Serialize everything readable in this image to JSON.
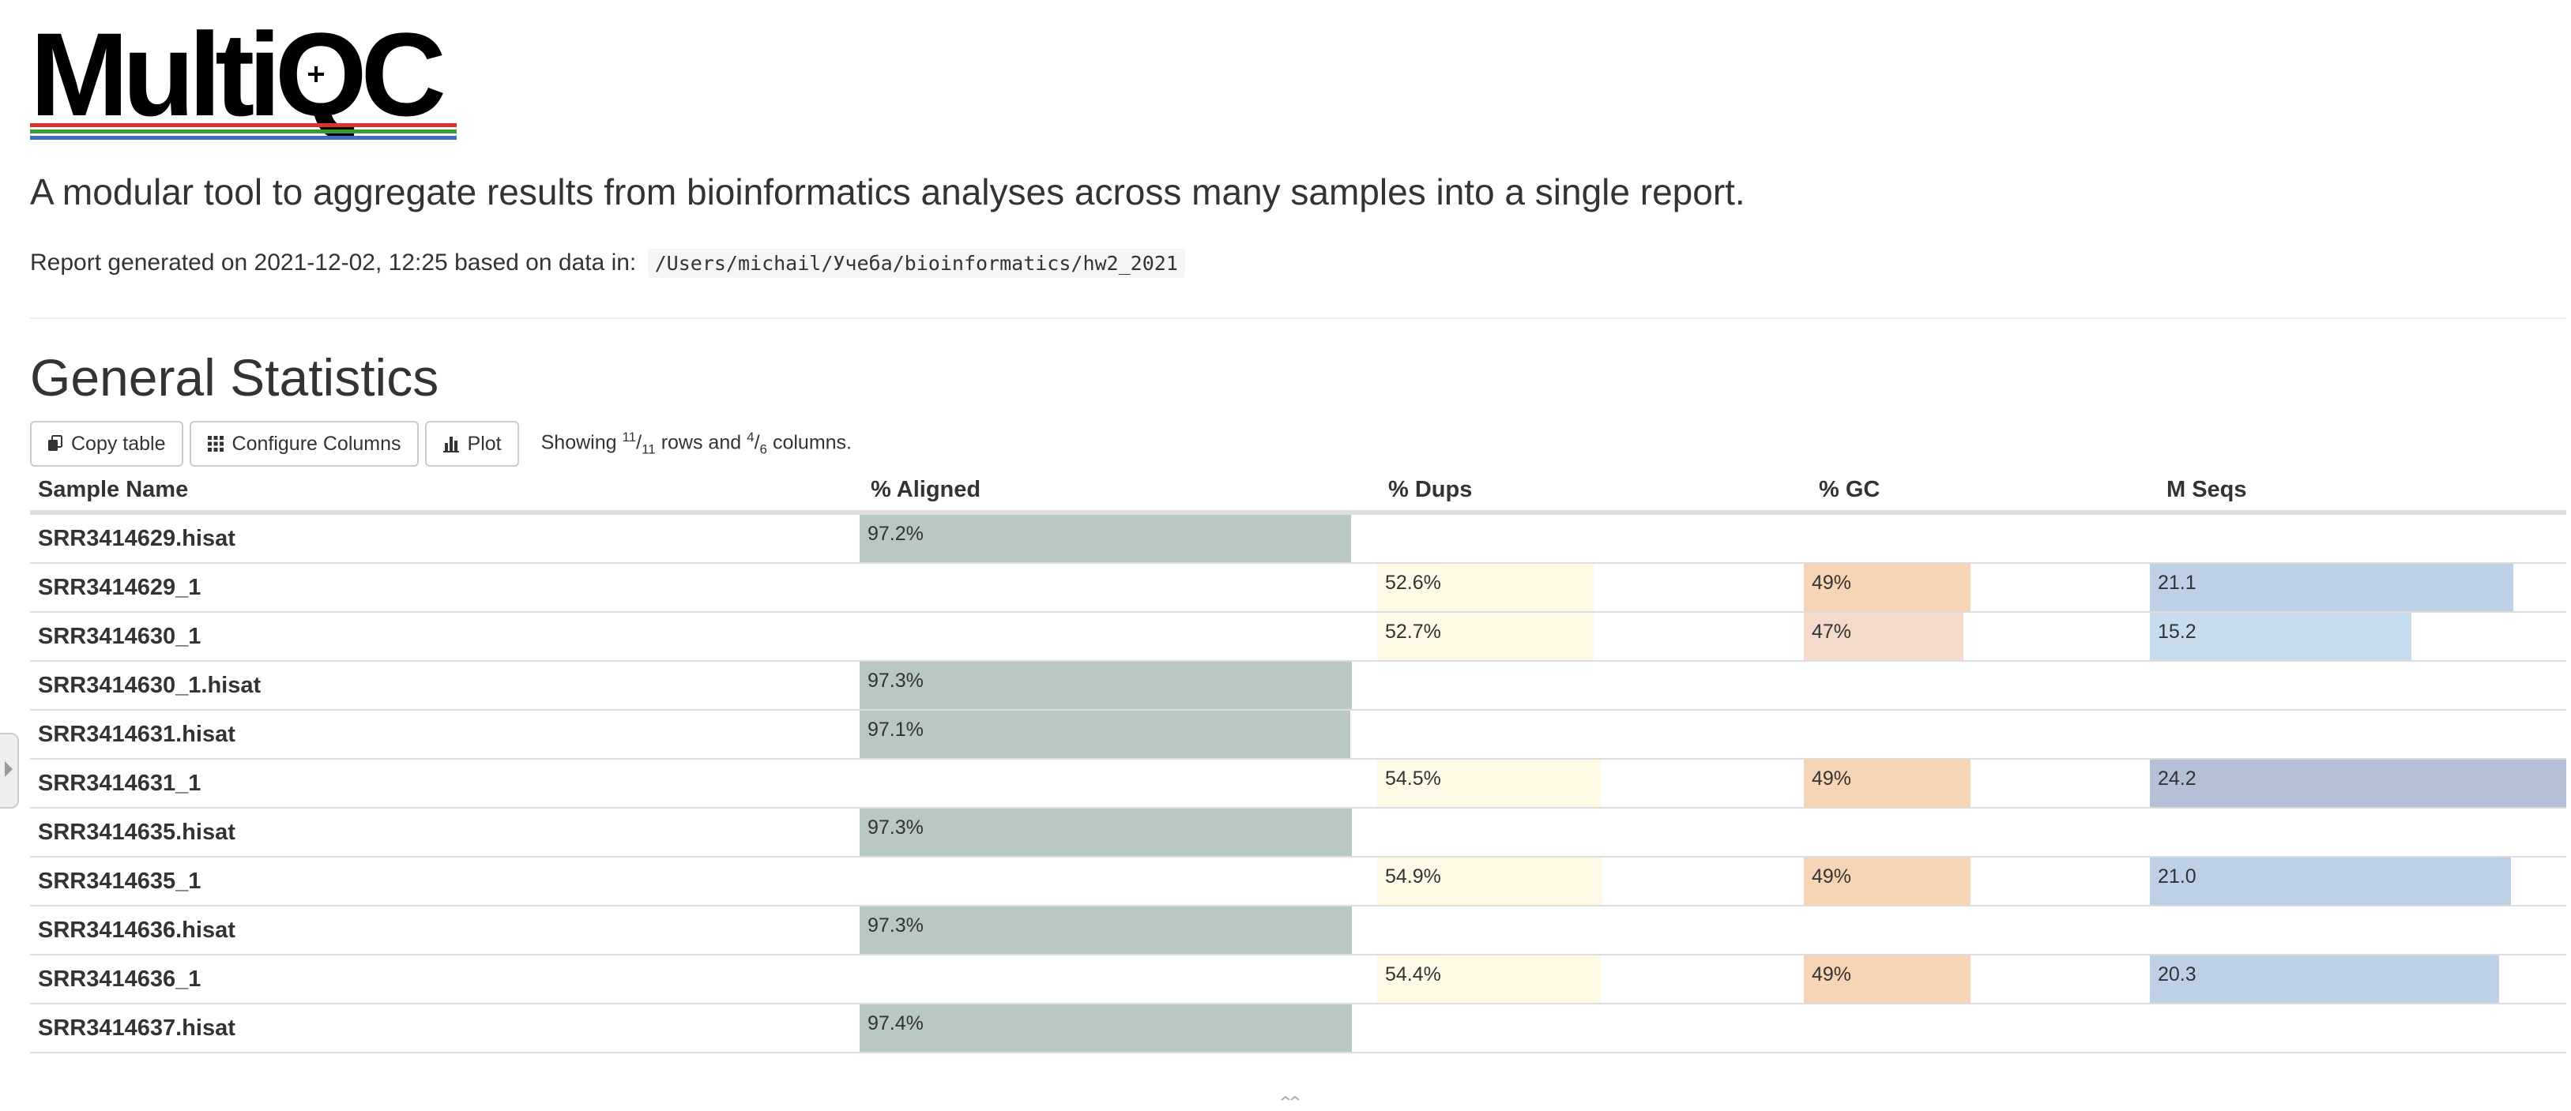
{
  "logo": {
    "text": "MultiQC",
    "line_colors": [
      "#d9342b",
      "#3a9a3a",
      "#3c6fbf"
    ]
  },
  "tagline": "A modular tool to aggregate results from bioinformatics analyses across many samples into a single report.",
  "report": {
    "generated_prefix": "Report generated on 2021-12-02, 12:25 based on data in:",
    "path": "/Users/michail/Учеба/bioinformatics/hw2_2021"
  },
  "general_stats": {
    "title": "General Statistics",
    "toolbar": {
      "copy_label": "Copy table",
      "configure_label": "Configure Columns",
      "plot_label": "Plot",
      "showing_prefix": "Showing",
      "rows_shown": "11",
      "rows_total": "11",
      "rows_word": "rows and",
      "cols_shown": "4",
      "cols_total": "6",
      "cols_word": "columns."
    },
    "columns": {
      "sample": "Sample Name",
      "aligned": "% Aligned",
      "dups": "% Dups",
      "gc": "% GC",
      "mseqs": "M Seqs"
    },
    "colors": {
      "aligned": "#b8c9c1",
      "dups": "#fefae6",
      "gc_49": "#f6d5b7",
      "gc_47": "#f3dacb",
      "mseqs_high": "#b3c0d6",
      "mseqs_mid": "#bdd0e6",
      "mseqs_low": "#c7dcec"
    },
    "rows": [
      {
        "sample": "SRR3414629.hisat",
        "aligned": "97.2%",
        "aligned_frac": 0.972,
        "dups": "",
        "dups_frac": 0,
        "gc": "",
        "gc_frac": 0,
        "gc_color": "gc_49",
        "mseqs": "",
        "mseqs_frac": 0,
        "mseqs_color": "mseqs_mid"
      },
      {
        "sample": "SRR3414629_1",
        "aligned": "",
        "aligned_frac": 0,
        "dups": "52.6%",
        "dups_frac": 0.526,
        "gc": "49%",
        "gc_frac": 0.49,
        "gc_color": "gc_49",
        "mseqs": "21.1",
        "mseqs_frac": 0.872,
        "mseqs_color": "mseqs_mid"
      },
      {
        "sample": "SRR3414630_1",
        "aligned": "",
        "aligned_frac": 0,
        "dups": "52.7%",
        "dups_frac": 0.527,
        "gc": "47%",
        "gc_frac": 0.47,
        "gc_color": "gc_47",
        "mseqs": "15.2",
        "mseqs_frac": 0.628,
        "mseqs_color": "mseqs_low"
      },
      {
        "sample": "SRR3414630_1.hisat",
        "aligned": "97.3%",
        "aligned_frac": 0.973,
        "dups": "",
        "dups_frac": 0,
        "gc": "",
        "gc_frac": 0,
        "gc_color": "gc_49",
        "mseqs": "",
        "mseqs_frac": 0,
        "mseqs_color": "mseqs_mid"
      },
      {
        "sample": "SRR3414631.hisat",
        "aligned": "97.1%",
        "aligned_frac": 0.971,
        "dups": "",
        "dups_frac": 0,
        "gc": "",
        "gc_frac": 0,
        "gc_color": "gc_49",
        "mseqs": "",
        "mseqs_frac": 0,
        "mseqs_color": "mseqs_mid"
      },
      {
        "sample": "SRR3414631_1",
        "aligned": "",
        "aligned_frac": 0,
        "dups": "54.5%",
        "dups_frac": 0.545,
        "gc": "49%",
        "gc_frac": 0.49,
        "gc_color": "gc_49",
        "mseqs": "24.2",
        "mseqs_frac": 1.0,
        "mseqs_color": "mseqs_high"
      },
      {
        "sample": "SRR3414635.hisat",
        "aligned": "97.3%",
        "aligned_frac": 0.973,
        "dups": "",
        "dups_frac": 0,
        "gc": "",
        "gc_frac": 0,
        "gc_color": "gc_49",
        "mseqs": "",
        "mseqs_frac": 0,
        "mseqs_color": "mseqs_mid"
      },
      {
        "sample": "SRR3414635_1",
        "aligned": "",
        "aligned_frac": 0,
        "dups": "54.9%",
        "dups_frac": 0.549,
        "gc": "49%",
        "gc_frac": 0.49,
        "gc_color": "gc_49",
        "mseqs": "21.0",
        "mseqs_frac": 0.868,
        "mseqs_color": "mseqs_mid"
      },
      {
        "sample": "SRR3414636.hisat",
        "aligned": "97.3%",
        "aligned_frac": 0.973,
        "dups": "",
        "dups_frac": 0,
        "gc": "",
        "gc_frac": 0,
        "gc_color": "gc_49",
        "mseqs": "",
        "mseqs_frac": 0,
        "mseqs_color": "mseqs_mid"
      },
      {
        "sample": "SRR3414636_1",
        "aligned": "",
        "aligned_frac": 0,
        "dups": "54.4%",
        "dups_frac": 0.544,
        "gc": "49%",
        "gc_frac": 0.49,
        "gc_color": "gc_49",
        "mseqs": "20.3",
        "mseqs_frac": 0.839,
        "mseqs_color": "mseqs_mid"
      },
      {
        "sample": "SRR3414637.hisat",
        "aligned": "97.4%",
        "aligned_frac": 0.974,
        "dups": "",
        "dups_frac": 0,
        "gc": "",
        "gc_frac": 0,
        "gc_color": "gc_49",
        "mseqs": "",
        "mseqs_frac": 0,
        "mseqs_color": "mseqs_mid"
      }
    ]
  },
  "icons": {
    "copy": "copy-icon",
    "configure": "grid-icon",
    "plot": "bar-chart-icon",
    "sidebar_toggle": "caret-right-icon",
    "more": "chevron-down-icon"
  }
}
